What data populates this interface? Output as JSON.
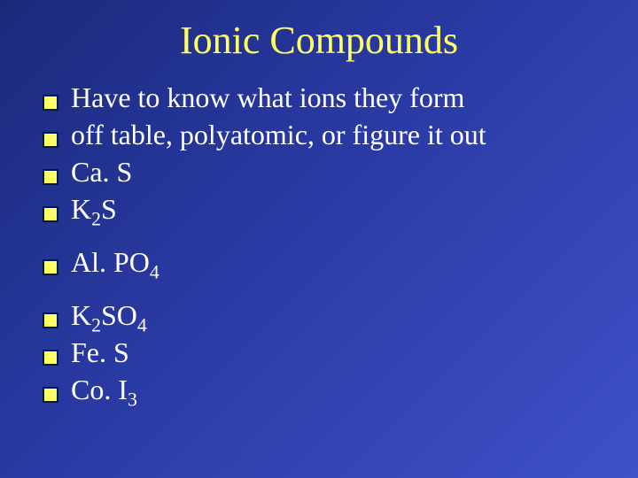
{
  "slide": {
    "title": "Ionic Compounds",
    "background_gradient": [
      "#1a2a7a",
      "#2838a0",
      "#4050c8"
    ],
    "title_color": "#ffff66",
    "text_color": "#ffffff",
    "bullet_fill": "#ffff66",
    "bullet_border": "#001a4d",
    "title_fontsize": 44,
    "body_fontsize": 32,
    "font_family": "Times New Roman",
    "bullets": [
      {
        "text": "Have to know what ions they form"
      },
      {
        "text": "off table, polyatomic, or figure it out"
      },
      {
        "text": "Ca. S"
      },
      {
        "prefix": "K",
        "sub1": "2",
        "suffix": "S"
      },
      {
        "prefix": "Al. PO",
        "sub1": "4"
      },
      {
        "prefix": "K",
        "sub1": "2",
        "mid": "SO",
        "sub2": "4"
      },
      {
        "text": "Fe. S"
      },
      {
        "prefix": "Co. I",
        "sub1": "3"
      }
    ]
  }
}
